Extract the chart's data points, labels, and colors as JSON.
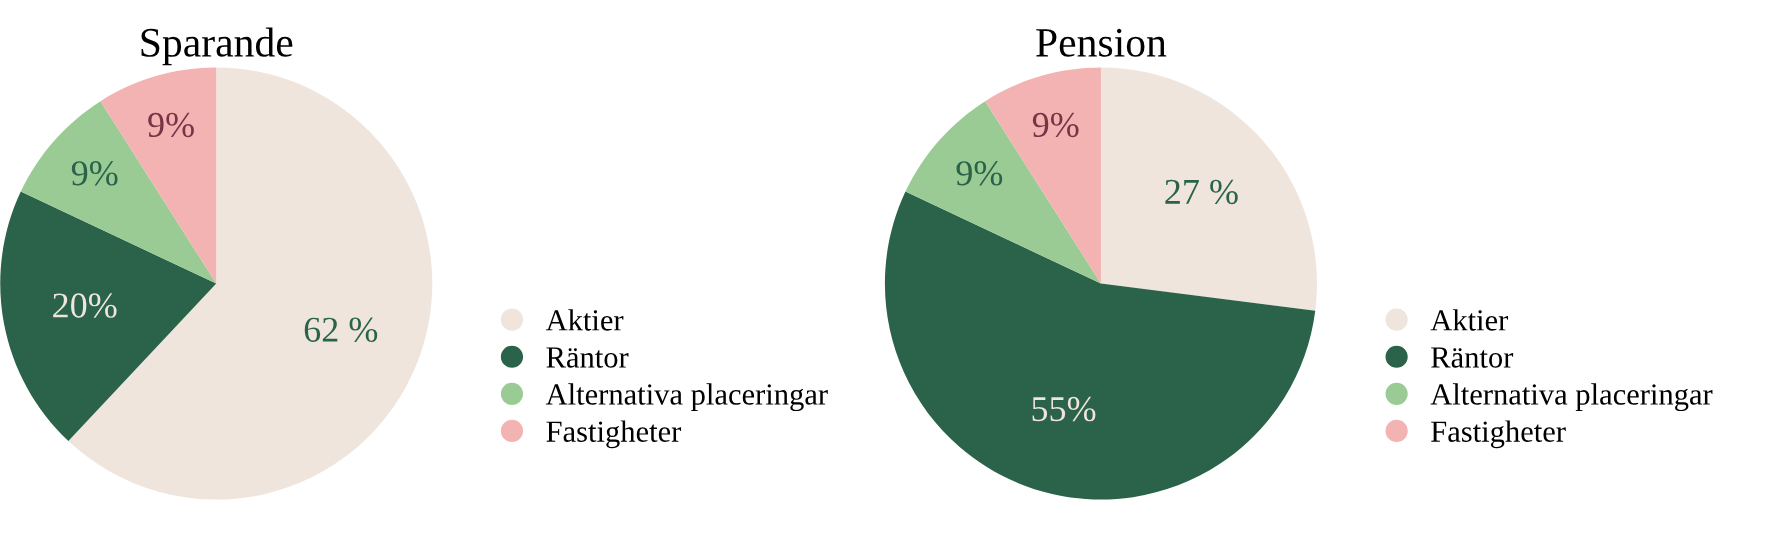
{
  "chart_data": [
    {
      "type": "pie",
      "title": "Sparande",
      "categories": [
        "Aktier",
        "Räntor",
        "Alternativa placeringar",
        "Fastigheter"
      ],
      "values": [
        62,
        20,
        9,
        9
      ],
      "value_labels": [
        "62 %",
        "20%",
        "9%",
        "9%"
      ],
      "colors": [
        "#efe5dc",
        "#2a6349",
        "#9acb94",
        "#f4b3b3"
      ],
      "legend": "right"
    },
    {
      "type": "pie",
      "title": "Pension",
      "categories": [
        "Aktier",
        "Räntor",
        "Alternativa placeringar",
        "Fastigheter"
      ],
      "values": [
        27,
        55,
        9,
        9
      ],
      "value_labels": [
        "27 %",
        "55%",
        "9%",
        "9%"
      ],
      "colors": [
        "#efe5dc",
        "#2a6349",
        "#9acb94",
        "#f4b3b3"
      ],
      "legend": "right"
    }
  ]
}
